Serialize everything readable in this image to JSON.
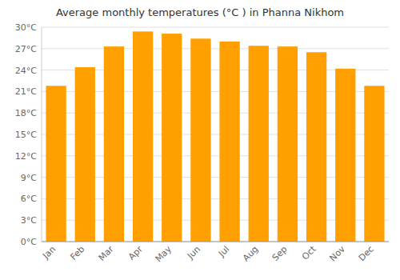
{
  "chart_data": {
    "type": "bar",
    "title": "Average monthly temperatures (°C ) in Phanna Nikhom",
    "categories": [
      "Jan",
      "Feb",
      "Mar",
      "Apr",
      "May",
      "Jun",
      "Jul",
      "Aug",
      "Sep",
      "Oct",
      "Nov",
      "Dec"
    ],
    "values": [
      21.8,
      24.4,
      27.3,
      29.4,
      29.1,
      28.4,
      28.0,
      27.4,
      27.3,
      26.5,
      24.2,
      21.8
    ],
    "color": "#FFA000",
    "ylim": [
      0,
      30
    ],
    "yticks": [
      {
        "value": 0,
        "label": "0°C"
      },
      {
        "value": 3,
        "label": "3°C"
      },
      {
        "value": 6,
        "label": "6°C"
      },
      {
        "value": 9,
        "label": "9°C"
      },
      {
        "value": 12,
        "label": "12°C"
      },
      {
        "value": 15,
        "label": "15°C"
      },
      {
        "value": 18,
        "label": "18°C"
      },
      {
        "value": 21,
        "label": "21°C"
      },
      {
        "value": 24,
        "label": "24°C"
      },
      {
        "value": 27,
        "label": "27°C"
      },
      {
        "value": 30,
        "label": "30°C"
      }
    ],
    "grid": true
  }
}
